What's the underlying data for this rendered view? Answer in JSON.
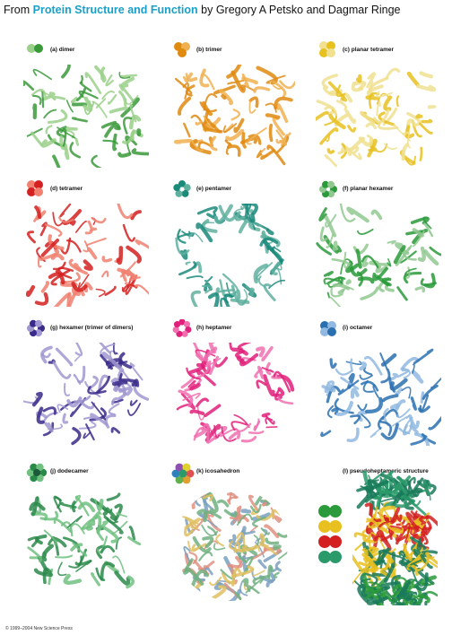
{
  "header": {
    "prefix": "From ",
    "book_title": "Protein Structure and Function",
    "suffix": " by Gregory A Petsko and Dagmar Ringe"
  },
  "copyright": "© 1999–2004 New Science Press",
  "panels": [
    {
      "id": "a",
      "label": "(a) dimer",
      "color": "#3a9a3a",
      "color2": "#9ad08a",
      "icon": "two-circle-icon"
    },
    {
      "id": "b",
      "label": "(b) trimer",
      "color": "#e08a10",
      "color2": "#f0b050",
      "icon": "three-circle-icon"
    },
    {
      "id": "c",
      "label": "(c) planar tetramer",
      "color": "#e8c020",
      "color2": "#f0e090",
      "icon": "four-circle-icon"
    },
    {
      "id": "d",
      "label": "(d) tetramer",
      "color": "#d42020",
      "color2": "#f08070",
      "icon": "four-circle-icon"
    },
    {
      "id": "e",
      "label": "(e) pentamer",
      "color": "#1a8a7a",
      "color2": "#60b0a0",
      "icon": "ring-five-icon"
    },
    {
      "id": "f",
      "label": "(f) planar hexamer",
      "color": "#2a9a3a",
      "color2": "#90c890",
      "icon": "hexamer-icon"
    },
    {
      "id": "g",
      "label": "(g) hexamer (trimer of dimers)",
      "color": "#3a2a8a",
      "color2": "#a098d0",
      "icon": "hexamer-icon"
    },
    {
      "id": "h",
      "label": "(h) heptamer",
      "color": "#e0207a",
      "color2": "#f070b0",
      "icon": "ring-seven-icon"
    },
    {
      "id": "i",
      "label": "(i) octamer",
      "color": "#2a70b0",
      "color2": "#90b8e0",
      "icon": "octamer-icon"
    },
    {
      "id": "j",
      "label": "(j) dodecamer",
      "color": "#2a8a4a",
      "color2": "#70c080",
      "icon": "dodecamer-icon"
    },
    {
      "id": "k",
      "label": "(k) icosahedron",
      "color": "#7aa0c0",
      "color2": "#e09080",
      "icon": "icosahedron-icon"
    },
    {
      "id": "l",
      "label": "(l) pseudoheptameric structure",
      "color": "#1a9a7a",
      "color2": "#e8d020",
      "icon": "stack-icon"
    }
  ]
}
